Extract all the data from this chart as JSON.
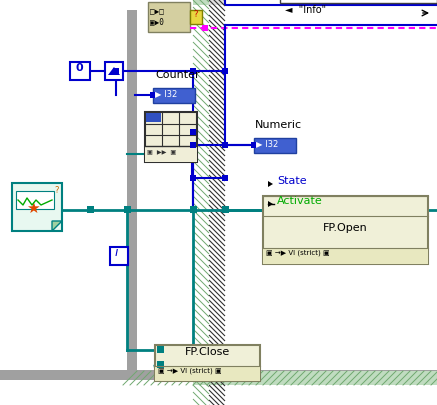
{
  "bg_color": "#ffffff",
  "blue_wire_color": "#0000cc",
  "teal_wire_color": "#008080",
  "pink_wire_color": "#ff00ff",
  "node_fill": "#d4cfa0",
  "node_border": "#808060",
  "i32_fill": "#4060d0",
  "i32_border": "#2040a0",
  "table_fill": "#f0eed8",
  "box_fill": "#f0f0d8",
  "vi_icon_fill": "#e8f8f0",
  "info_label": "\"Info\"",
  "counter_label": "Counter",
  "numeric_label": "Numeric",
  "i32_label": "I32",
  "fp_open_label": "FP.Open",
  "fp_close_label": "FP.Close",
  "activate_label": "Activate",
  "state_label": "State",
  "vi_strict_label": "VI (strict)",
  "zero_label": "0",
  "i_label": "i",
  "gray_loop": "#909090",
  "green_hatch": "#b8d8b8",
  "black_hatch": "#505050",
  "white": "#ffffff"
}
